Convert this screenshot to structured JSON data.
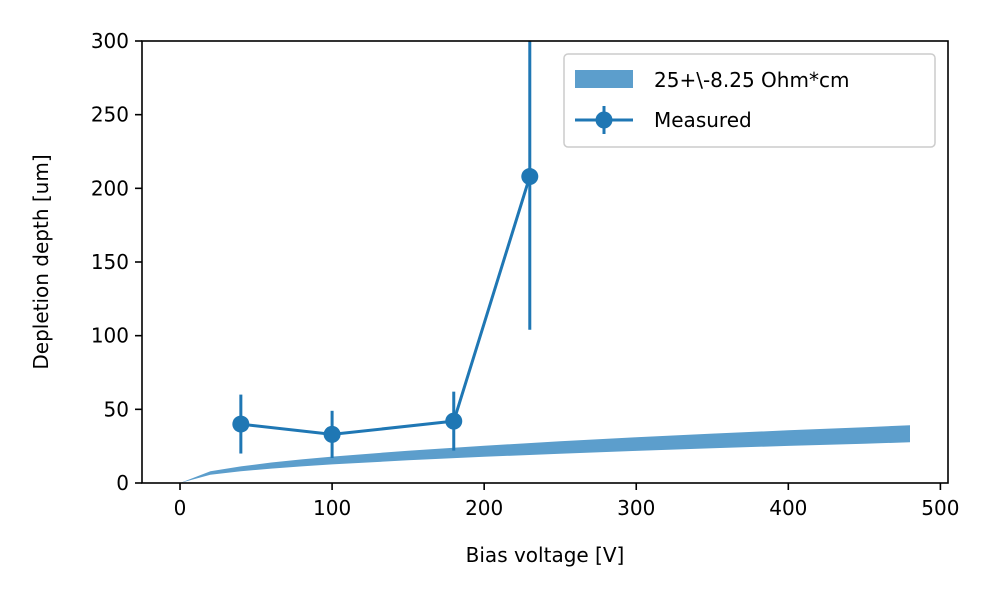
{
  "chart_data": {
    "type": "line",
    "xlabel": "Bias voltage [V]",
    "ylabel": "Depletion depth [um]",
    "xlim": [
      -25,
      505
    ],
    "ylim": [
      0,
      300
    ],
    "xticks": [
      0,
      100,
      200,
      300,
      400,
      500
    ],
    "yticks": [
      0,
      50,
      100,
      150,
      200,
      250,
      300
    ],
    "grid": false,
    "legend_position": "top-right",
    "colors": {
      "measured": "#1f77b4",
      "band": "#5c9ecc"
    },
    "band": {
      "name": "25+\\-8.25 Ohm*cm",
      "x": [
        0,
        20,
        40,
        60,
        80,
        100,
        150,
        200,
        250,
        300,
        350,
        400,
        450,
        480
      ],
      "lower": [
        0,
        5.6,
        8.0,
        9.8,
        11.3,
        12.6,
        15.4,
        17.8,
        19.9,
        21.8,
        23.6,
        25.2,
        26.7,
        27.6
      ],
      "upper": [
        0,
        8.0,
        11.3,
        13.9,
        16.0,
        17.9,
        21.9,
        25.3,
        28.3,
        31.0,
        33.5,
        35.8,
        37.9,
        39.2
      ]
    },
    "series": [
      {
        "name": "Measured",
        "x": [
          40,
          100,
          180,
          230
        ],
        "y": [
          40,
          33,
          42,
          208
        ],
        "yerr": [
          20,
          16,
          20,
          104
        ]
      }
    ]
  }
}
